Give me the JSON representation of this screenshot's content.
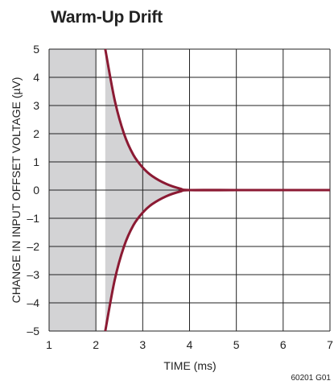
{
  "chart_data": {
    "type": "line",
    "title": "Warm-Up Drift",
    "xlabel": "TIME (ms)",
    "ylabel": "CHANGE IN INPUT OFFSET VOLTAGE (µV)",
    "xlim": [
      1,
      7
    ],
    "ylim": [
      -5,
      5
    ],
    "x_ticks": [
      1,
      2,
      3,
      4,
      5,
      6,
      7
    ],
    "x_tick_labels": [
      "1",
      "2",
      "3",
      "4",
      "5",
      "6",
      "7"
    ],
    "y_ticks": [
      5,
      4,
      3,
      2,
      1,
      0,
      -1,
      -2,
      -3,
      -4,
      -5
    ],
    "y_tick_labels": [
      "5",
      "4",
      "3",
      "2",
      "1",
      "0",
      "–1",
      "–2",
      "–3",
      "–4",
      "–5"
    ],
    "grid": true,
    "shaded_region": {
      "x": [
        1,
        2
      ],
      "fill": "#d3d3d5"
    },
    "line_color": "#8b1a33",
    "series": [
      {
        "x": [
          2.2,
          2.4,
          2.6,
          2.8,
          3.0,
          3.2,
          3.5,
          3.8,
          4.0,
          5.0,
          6.0,
          7.0
        ],
        "values": [
          5.0,
          3.2,
          2.0,
          1.25,
          0.8,
          0.5,
          0.22,
          0.05,
          0.0,
          0.0,
          0.0,
          0.0
        ]
      },
      {
        "x": [
          2.2,
          2.4,
          2.6,
          2.8,
          3.0,
          3.2,
          3.5,
          3.8,
          4.0,
          5.0,
          6.0,
          7.0
        ],
        "values": [
          -5.0,
          -3.2,
          -2.0,
          -1.25,
          -0.8,
          -0.5,
          -0.22,
          -0.05,
          0.0,
          0.0,
          0.0,
          0.0
        ]
      }
    ],
    "figure_id": "60201 G01"
  }
}
